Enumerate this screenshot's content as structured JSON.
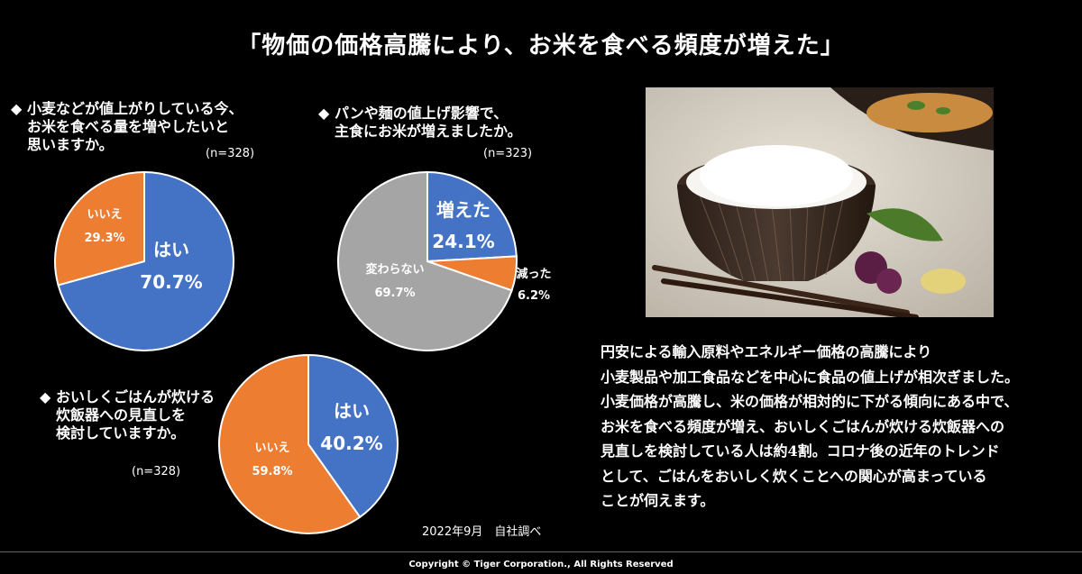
{
  "title": "「物価の価格高騰により、お米を食べる頻度が増えた」",
  "questions": [
    {
      "lines": [
        "小麦などが値上がりしている今、",
        "お米を食べる量を増やしたいと",
        "思いますか。"
      ],
      "n": "(n=328)"
    },
    {
      "lines": [
        "パンや麺の値上げ影響で、",
        "主食にお米が増えましたか。"
      ],
      "n": "(n=323)"
    },
    {
      "lines": [
        "おいしくごはんが炊ける",
        "炊飯器への見直しを",
        "検討していますか。"
      ],
      "n": "(n=328)"
    }
  ],
  "chart_data": [
    {
      "type": "pie",
      "slices": [
        {
          "label": "はい",
          "value": 70.7,
          "value_text": "70.7%",
          "color": "#4472C4"
        },
        {
          "label": "いいえ",
          "value": 29.3,
          "value_text": "29.3%",
          "color": "#ED7D31"
        }
      ]
    },
    {
      "type": "pie",
      "slices": [
        {
          "label": "増えた",
          "value": 24.1,
          "value_text": "24.1%",
          "color": "#4472C4"
        },
        {
          "label": "減った",
          "value": 6.2,
          "value_text": "6.2%",
          "color": "#ED7D31"
        },
        {
          "label": "変わらない",
          "value": 69.7,
          "value_text": "69.7%",
          "color": "#A5A5A5"
        }
      ]
    },
    {
      "type": "pie",
      "slices": [
        {
          "label": "はい",
          "value": 40.2,
          "value_text": "40.2%",
          "color": "#4472C4"
        },
        {
          "label": "いいえ",
          "value": 59.8,
          "value_text": "59.8%",
          "color": "#ED7D31"
        }
      ]
    }
  ],
  "description": [
    "円安による輸入原料やエネルギー価格の高騰により",
    "小麦製品や加工食品などを中心に食品の値上げが相次ぎました。",
    "小麦価格が高騰し、米の価格が相対的に下がる傾向にある中で、",
    "お米を食べる頻度が増え、おいしくごはんが炊ける炊飯器への",
    "見直しを検討している人は約4割。コロナ後の近年のトレンド",
    "として、ごはんをおいしく炊くことへの関心が高まっている",
    "ことが伺えます。"
  ],
  "survey_note": "2022年9月　自社調べ",
  "copyright": "Copyright © Tiger Corporation., All Rights Reserved",
  "bullet": "◆"
}
